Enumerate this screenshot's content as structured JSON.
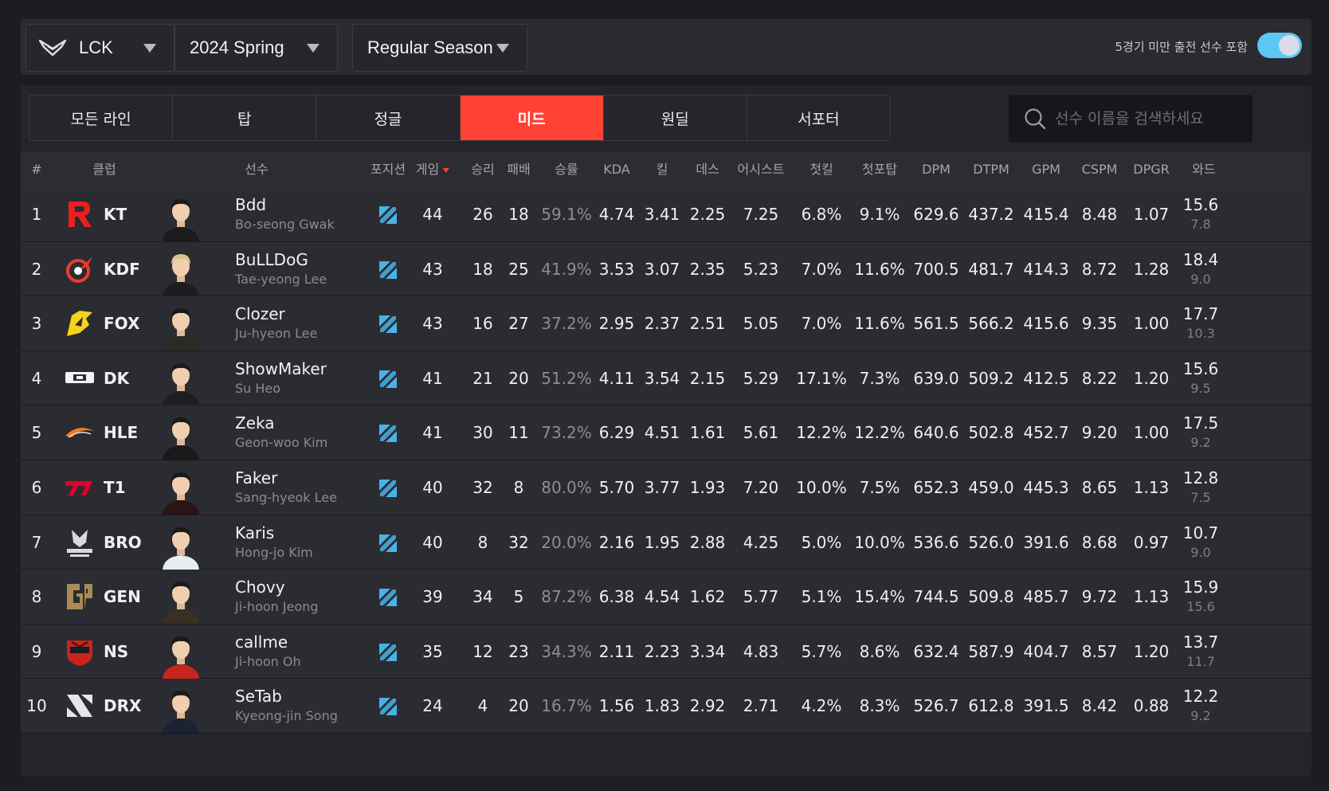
{
  "filters": {
    "league": "LCK",
    "season": "2024 Spring",
    "stage": "Regular Season",
    "toggle_label": "5경기 미만 출전 선수 포함",
    "toggle_on": true
  },
  "tabs": [
    {
      "label": "모든 라인",
      "active": false
    },
    {
      "label": "탑",
      "active": false
    },
    {
      "label": "정글",
      "active": false
    },
    {
      "label": "미드",
      "active": true
    },
    {
      "label": "원딜",
      "active": false
    },
    {
      "label": "서포터",
      "active": false
    }
  ],
  "search": {
    "placeholder": "선수 이름을 검색하세요"
  },
  "columns": [
    "#",
    "클럽",
    "선수",
    "포지션",
    "게임",
    "승리",
    "패배",
    "승률",
    "KDA",
    "킬",
    "데스",
    "어시스트",
    "첫킬",
    "첫포탑",
    "DPM",
    "DTPM",
    "GPM",
    "CSPM",
    "DPGR",
    "와드"
  ],
  "sort_column": "게임",
  "colors": {
    "accent": "#ff4133",
    "toggle": "#5bc7f2",
    "mid_icon": "#46b4e6"
  },
  "rows": [
    {
      "rank": "1",
      "team": "KT",
      "name": "Bdd",
      "real": "Bo-seong Gwak",
      "games": "44",
      "wins": "26",
      "losses": "18",
      "winrate": "59.1%",
      "kda": "4.74",
      "kills": "3.41",
      "deaths": "2.25",
      "assists": "7.25",
      "fk": "6.8%",
      "ft": "9.1%",
      "dpm": "629.6",
      "dtpm": "437.2",
      "gpm": "415.4",
      "cspm": "8.48",
      "dpgr": "1.07",
      "ward": "15.6",
      "ward2": "7.8"
    },
    {
      "rank": "2",
      "team": "KDF",
      "name": "BuLLDoG",
      "real": "Tae-yeong Lee",
      "games": "43",
      "wins": "18",
      "losses": "25",
      "winrate": "41.9%",
      "kda": "3.53",
      "kills": "3.07",
      "deaths": "2.35",
      "assists": "5.23",
      "fk": "7.0%",
      "ft": "11.6%",
      "dpm": "700.5",
      "dtpm": "481.7",
      "gpm": "414.3",
      "cspm": "8.72",
      "dpgr": "1.28",
      "ward": "18.4",
      "ward2": "9.0"
    },
    {
      "rank": "3",
      "team": "FOX",
      "name": "Clozer",
      "real": "Ju-hyeon Lee",
      "games": "43",
      "wins": "16",
      "losses": "27",
      "winrate": "37.2%",
      "kda": "2.95",
      "kills": "2.37",
      "deaths": "2.51",
      "assists": "5.05",
      "fk": "7.0%",
      "ft": "11.6%",
      "dpm": "561.5",
      "dtpm": "566.2",
      "gpm": "415.6",
      "cspm": "9.35",
      "dpgr": "1.00",
      "ward": "17.7",
      "ward2": "10.3"
    },
    {
      "rank": "4",
      "team": "DK",
      "name": "ShowMaker",
      "real": "Su Heo",
      "games": "41",
      "wins": "21",
      "losses": "20",
      "winrate": "51.2%",
      "kda": "4.11",
      "kills": "3.54",
      "deaths": "2.15",
      "assists": "5.29",
      "fk": "17.1%",
      "ft": "7.3%",
      "dpm": "639.0",
      "dtpm": "509.2",
      "gpm": "412.5",
      "cspm": "8.22",
      "dpgr": "1.20",
      "ward": "15.6",
      "ward2": "9.5"
    },
    {
      "rank": "5",
      "team": "HLE",
      "name": "Zeka",
      "real": "Geon-woo Kim",
      "games": "41",
      "wins": "30",
      "losses": "11",
      "winrate": "73.2%",
      "kda": "6.29",
      "kills": "4.51",
      "deaths": "1.61",
      "assists": "5.61",
      "fk": "12.2%",
      "ft": "12.2%",
      "dpm": "640.6",
      "dtpm": "502.8",
      "gpm": "452.7",
      "cspm": "9.20",
      "dpgr": "1.00",
      "ward": "17.5",
      "ward2": "9.2"
    },
    {
      "rank": "6",
      "team": "T1",
      "name": "Faker",
      "real": "Sang-hyeok Lee",
      "games": "40",
      "wins": "32",
      "losses": "8",
      "winrate": "80.0%",
      "kda": "5.70",
      "kills": "3.77",
      "deaths": "1.93",
      "assists": "7.20",
      "fk": "10.0%",
      "ft": "7.5%",
      "dpm": "652.3",
      "dtpm": "459.0",
      "gpm": "445.3",
      "cspm": "8.65",
      "dpgr": "1.13",
      "ward": "12.8",
      "ward2": "7.5"
    },
    {
      "rank": "7",
      "team": "BRO",
      "name": "Karis",
      "real": "Hong-jo Kim",
      "games": "40",
      "wins": "8",
      "losses": "32",
      "winrate": "20.0%",
      "kda": "2.16",
      "kills": "1.95",
      "deaths": "2.88",
      "assists": "4.25",
      "fk": "5.0%",
      "ft": "10.0%",
      "dpm": "536.6",
      "dtpm": "526.0",
      "gpm": "391.6",
      "cspm": "8.68",
      "dpgr": "0.97",
      "ward": "10.7",
      "ward2": "9.0"
    },
    {
      "rank": "8",
      "team": "GEN",
      "name": "Chovy",
      "real": "Ji-hoon Jeong",
      "games": "39",
      "wins": "34",
      "losses": "5",
      "winrate": "87.2%",
      "kda": "6.38",
      "kills": "4.54",
      "deaths": "1.62",
      "assists": "5.77",
      "fk": "5.1%",
      "ft": "15.4%",
      "dpm": "744.5",
      "dtpm": "509.8",
      "gpm": "485.7",
      "cspm": "9.72",
      "dpgr": "1.13",
      "ward": "15.9",
      "ward2": "15.6"
    },
    {
      "rank": "9",
      "team": "NS",
      "name": "callme",
      "real": "Ji-hoon Oh",
      "games": "35",
      "wins": "12",
      "losses": "23",
      "winrate": "34.3%",
      "kda": "2.11",
      "kills": "2.23",
      "deaths": "3.34",
      "assists": "4.83",
      "fk": "5.7%",
      "ft": "8.6%",
      "dpm": "632.4",
      "dtpm": "587.9",
      "gpm": "404.7",
      "cspm": "8.57",
      "dpgr": "1.20",
      "ward": "13.7",
      "ward2": "11.7"
    },
    {
      "rank": "10",
      "team": "DRX",
      "name": "SeTab",
      "real": "Kyeong-jin Song",
      "games": "24",
      "wins": "4",
      "losses": "20",
      "winrate": "16.7%",
      "kda": "1.56",
      "kills": "1.83",
      "deaths": "2.92",
      "assists": "2.71",
      "fk": "4.2%",
      "ft": "8.3%",
      "dpm": "526.7",
      "dtpm": "612.8",
      "gpm": "391.5",
      "cspm": "8.42",
      "dpgr": "0.88",
      "ward": "12.2",
      "ward2": "9.2"
    }
  ]
}
